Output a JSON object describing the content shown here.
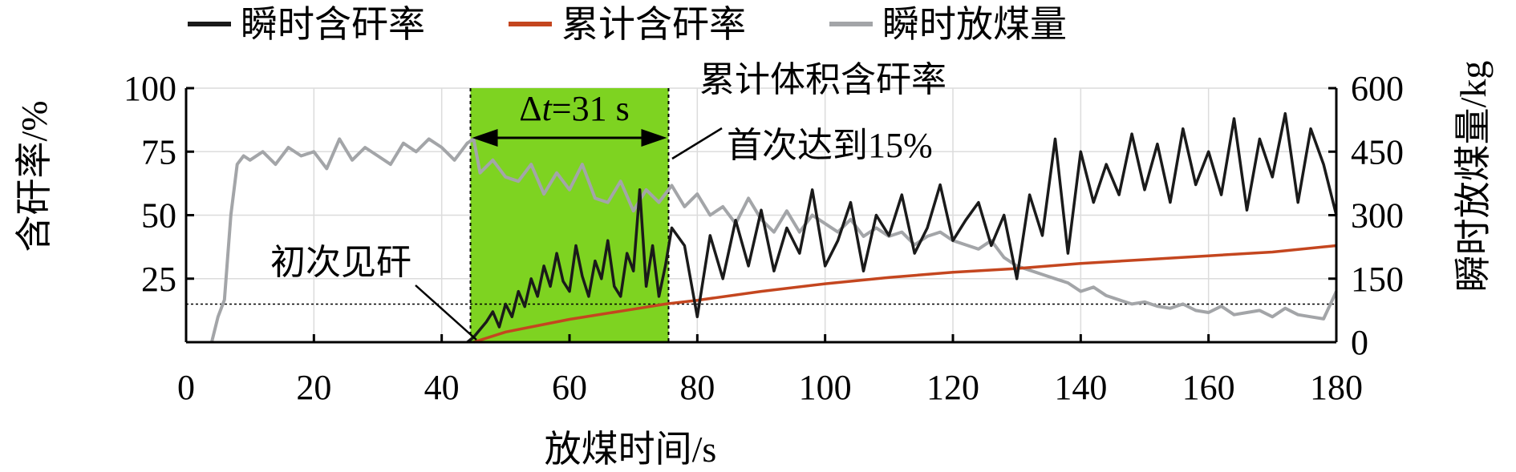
{
  "chart_data": {
    "type": "line",
    "xlabel": "放煤时间/s",
    "ylabel_left": "含矸率/%",
    "ylabel_right": "瞬时放煤量/kg",
    "xlim": [
      0,
      180
    ],
    "ylim_left": [
      0,
      100
    ],
    "ylim_right": [
      0,
      600
    ],
    "x_ticks": [
      "0",
      "20",
      "40",
      "60",
      "80",
      "100",
      "120",
      "140",
      "160",
      "180"
    ],
    "y_left_ticks": [
      "25",
      "50",
      "75",
      "100"
    ],
    "y_right_ticks": [
      "0",
      "150",
      "300",
      "450",
      "600"
    ],
    "grid": true,
    "legend_position": "top",
    "threshold_percent": 15,
    "highlight_window": {
      "x_start": 44.5,
      "x_end": 75.5,
      "label_delta": "Δ",
      "label_t": "t",
      "label_value": "=31 s"
    },
    "annotations": {
      "first_gangue": "初次见矸",
      "cumulative_line1": "累计体积含矸率",
      "cumulative_line2": "首次达到15%"
    },
    "colors": {
      "instant_rate": "#1a1a1a",
      "cumulative_rate": "#c4461f",
      "discharge": "#a3a5a8",
      "highlight": "#7ed321",
      "grid": "#dcdcdc"
    },
    "series": [
      {
        "name": "瞬时含矸率",
        "axis": "left",
        "x": [
          44,
          45,
          46,
          47,
          48,
          49,
          50,
          51,
          52,
          53,
          54,
          55,
          56,
          57,
          58,
          59,
          60,
          61,
          62,
          63,
          64,
          65,
          66,
          67,
          68,
          69,
          70,
          71,
          72,
          73,
          74,
          75,
          76,
          78,
          80,
          82,
          84,
          86,
          88,
          90,
          92,
          94,
          96,
          98,
          100,
          102,
          104,
          106,
          108,
          110,
          112,
          114,
          116,
          118,
          120,
          122,
          124,
          126,
          128,
          130,
          132,
          134,
          136,
          138,
          140,
          142,
          144,
          146,
          148,
          150,
          152,
          154,
          156,
          158,
          160,
          162,
          164,
          166,
          168,
          170,
          172,
          174,
          176,
          178,
          180
        ],
        "y": [
          0,
          2,
          5,
          8,
          12,
          6,
          15,
          10,
          20,
          14,
          25,
          18,
          30,
          22,
          35,
          24,
          20,
          38,
          26,
          18,
          32,
          25,
          40,
          22,
          18,
          35,
          28,
          60,
          22,
          38,
          18,
          30,
          45,
          38,
          10,
          42,
          25,
          48,
          30,
          52,
          28,
          45,
          35,
          60,
          30,
          40,
          55,
          28,
          50,
          42,
          58,
          35,
          45,
          62,
          40,
          48,
          55,
          38,
          50,
          25,
          58,
          42,
          80,
          35,
          75,
          55,
          70,
          58,
          82,
          60,
          78,
          55,
          84,
          62,
          75,
          58,
          88,
          52,
          80,
          65,
          90,
          55,
          84,
          70,
          50
        ]
      },
      {
        "name": "累计含矸率",
        "axis": "left",
        "x": [
          45,
          50,
          55,
          60,
          65,
          70,
          75,
          80,
          90,
          100,
          110,
          120,
          130,
          140,
          150,
          160,
          170,
          180
        ],
        "y": [
          0,
          4,
          6.5,
          9,
          11,
          13,
          15,
          16.5,
          20,
          23,
          25.5,
          27.5,
          29,
          31,
          32.5,
          34,
          35.5,
          38
        ]
      },
      {
        "name": "瞬时放煤量",
        "axis": "right",
        "x": [
          4,
          5,
          6,
          7,
          8,
          9,
          10,
          12,
          14,
          16,
          18,
          20,
          22,
          24,
          26,
          28,
          30,
          32,
          34,
          36,
          38,
          40,
          42,
          44,
          45,
          46,
          48,
          50,
          52,
          54,
          56,
          58,
          60,
          62,
          64,
          66,
          68,
          70,
          72,
          74,
          76,
          78,
          80,
          82,
          84,
          86,
          88,
          90,
          92,
          94,
          96,
          98,
          100,
          102,
          104,
          106,
          108,
          110,
          112,
          114,
          116,
          118,
          120,
          122,
          124,
          126,
          128,
          130,
          132,
          134,
          136,
          138,
          140,
          142,
          144,
          146,
          148,
          150,
          152,
          154,
          156,
          158,
          160,
          162,
          164,
          166,
          168,
          170,
          172,
          174,
          176,
          178,
          180
        ],
        "y": [
          0,
          60,
          100,
          300,
          420,
          440,
          430,
          450,
          420,
          460,
          440,
          450,
          410,
          480,
          430,
          460,
          440,
          420,
          470,
          450,
          480,
          460,
          430,
          470,
          480,
          400,
          430,
          390,
          380,
          420,
          350,
          400,
          360,
          420,
          340,
          330,
          380,
          310,
          360,
          330,
          370,
          320,
          350,
          300,
          320,
          280,
          340,
          290,
          260,
          310,
          260,
          300,
          280,
          260,
          290,
          250,
          270,
          250,
          260,
          230,
          250,
          260,
          240,
          230,
          220,
          240,
          200,
          180,
          170,
          160,
          150,
          140,
          120,
          130,
          110,
          100,
          90,
          95,
          85,
          80,
          90,
          75,
          70,
          85,
          65,
          70,
          75,
          60,
          80,
          65,
          60,
          55,
          120
        ]
      }
    ]
  }
}
